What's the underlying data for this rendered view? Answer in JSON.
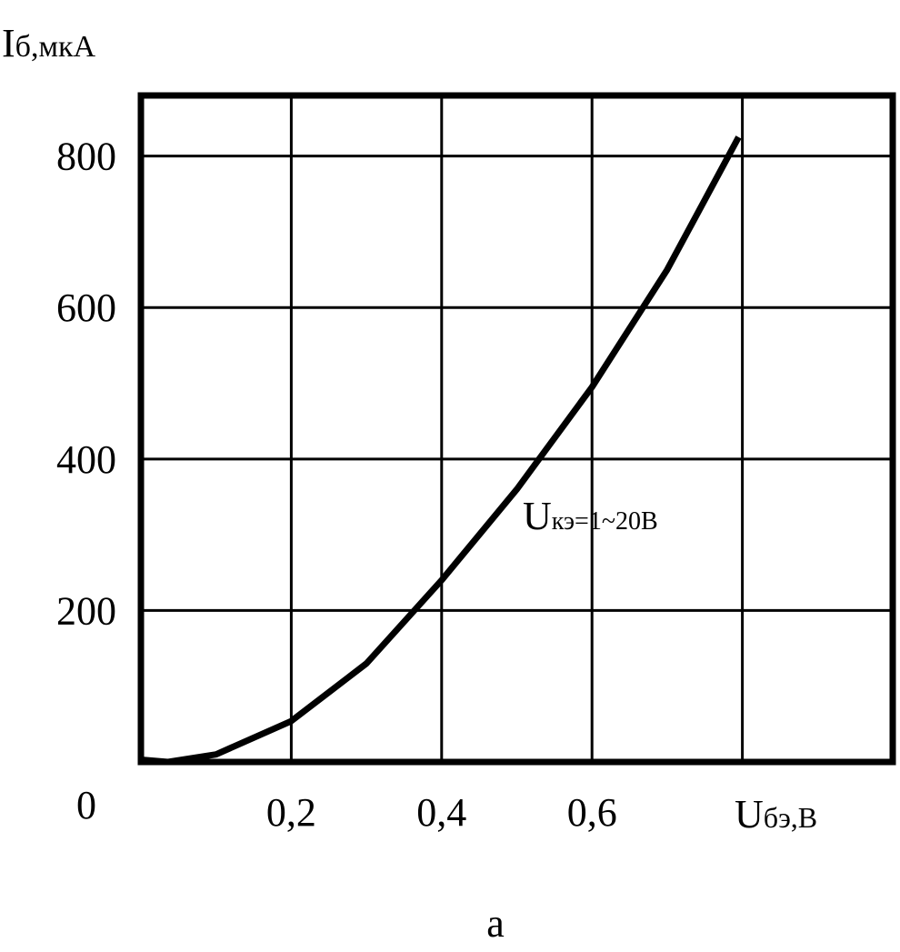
{
  "chart_data": {
    "type": "line",
    "y_label": {
      "main": "I",
      "sub": "б,мкА"
    },
    "x_label": {
      "main": "U",
      "sub": "бэ,В"
    },
    "annotation": {
      "main": "U",
      "sub": "кэ=1~20В"
    },
    "caption": "а",
    "x": [
      0,
      0.036,
      0.1,
      0.2,
      0.3,
      0.4,
      0.5,
      0.6,
      0.7,
      0.795
    ],
    "series": [
      {
        "color": "#000000",
        "values": [
          3,
          0,
          10,
          54,
          130,
          240,
          360,
          495,
          650,
          825
        ]
      }
    ],
    "xlim": [
      0,
      1.0
    ],
    "ylim": [
      0,
      880
    ],
    "xticks": [
      {
        "value": 0.2,
        "label": "0,2"
      },
      {
        "value": 0.4,
        "label": "0,4"
      },
      {
        "value": 0.6,
        "label": "0,6"
      }
    ],
    "xgrid": [
      0.2,
      0.4,
      0.6,
      0.8
    ],
    "yticks": [
      0,
      200,
      400,
      600,
      800
    ],
    "grid": true
  }
}
